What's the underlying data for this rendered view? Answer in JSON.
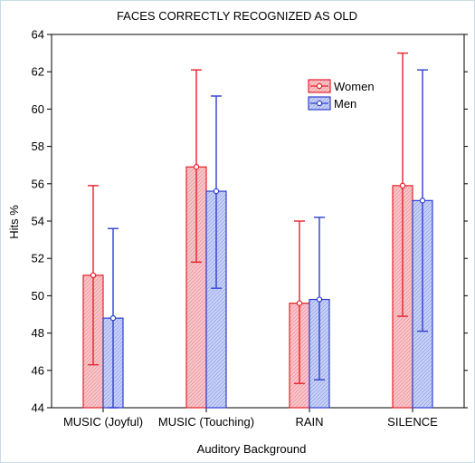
{
  "chart_data": {
    "type": "bar",
    "title": "FACES CORRECTLY RECOGNIZED AS OLD",
    "xlabel": "Auditory Background",
    "ylabel": "Hits %",
    "ylim": [
      44,
      64
    ],
    "yticks": [
      "44",
      "46",
      "48",
      "50",
      "52",
      "54",
      "56",
      "58",
      "60",
      "62",
      "64"
    ],
    "categories": [
      "MUSIC (Joyful)",
      "MUSIC (Touching)",
      "RAIN",
      "SILENCE"
    ],
    "legend_position": "top-right",
    "series": [
      {
        "name": "Women",
        "color": "#e8202a",
        "fill": "#f6c8cc",
        "values": [
          51.1,
          56.9,
          49.6,
          55.9
        ],
        "err_low": [
          46.3,
          51.8,
          45.3,
          48.9
        ],
        "err_high": [
          55.9,
          62.1,
          54.0,
          63.0
        ]
      },
      {
        "name": "Men",
        "color": "#2d3fd0",
        "fill": "#c9d2f6",
        "values": [
          48.8,
          55.6,
          49.8,
          55.1
        ],
        "err_low": [
          44.0,
          50.4,
          45.5,
          48.1
        ],
        "err_high": [
          53.6,
          60.7,
          54.2,
          62.1
        ]
      }
    ],
    "grid": false
  }
}
